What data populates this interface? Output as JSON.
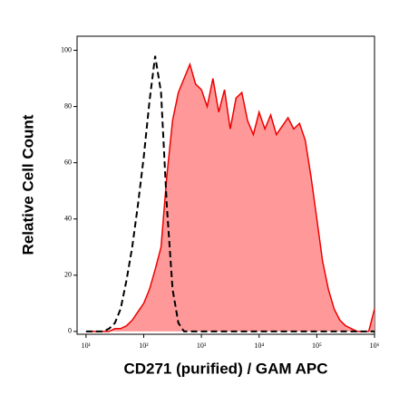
{
  "chart_data": {
    "type": "histogram-overlay",
    "xlabel": "CD271 (purified) / GAM APC",
    "ylabel": "Relative Cell Count",
    "xscale": "log",
    "xlim": [
      7,
      1000000
    ],
    "ylim": [
      -1,
      105
    ],
    "xticks": [
      {
        "value": 10,
        "label": "10¹"
      },
      {
        "value": 100,
        "label": "10²"
      },
      {
        "value": 1000,
        "label": "10³"
      },
      {
        "value": 10000,
        "label": "10⁴"
      },
      {
        "value": 100000,
        "label": "10⁵"
      },
      {
        "value": 1000000,
        "label": "10⁶"
      }
    ],
    "yticks": [
      0,
      20,
      40,
      60,
      80,
      100
    ],
    "x": [
      10,
      12.6,
      15.8,
      20,
      25.1,
      31.6,
      39.8,
      50.1,
      63.1,
      79.4,
      100,
      126,
      158,
      200,
      251,
      316,
      398,
      501,
      631,
      794,
      1000,
      1259,
      1585,
      1995,
      2512,
      3162,
      3981,
      5012,
      6310,
      7943,
      10000,
      12589,
      15849,
      19953,
      25119,
      31623,
      39811,
      50119,
      63096,
      79433,
      100000,
      125893,
      158489,
      199526,
      251189,
      316228,
      398107,
      501187,
      630957,
      794328,
      1000000
    ],
    "series": [
      {
        "color": "#ee0000",
        "fill": "#ff9999",
        "style": "filled",
        "values": [
          0,
          0,
          0,
          0,
          0,
          1,
          1,
          2,
          4,
          7,
          10,
          15,
          22,
          30,
          55,
          75,
          85,
          90,
          95,
          88,
          86,
          80,
          90,
          78,
          86,
          72,
          83,
          85,
          75,
          70,
          78,
          72,
          77,
          70,
          73,
          76,
          72,
          74,
          68,
          55,
          40,
          25,
          15,
          8,
          4,
          2,
          1,
          0,
          0,
          0,
          8
        ]
      },
      {
        "color": "#000000",
        "style": "dashed",
        "values": [
          0,
          0,
          0,
          0,
          1,
          3,
          8,
          18,
          30,
          45,
          62,
          82,
          98,
          85,
          45,
          15,
          3,
          0,
          0,
          0,
          0,
          0,
          0,
          0,
          0,
          0,
          0,
          0,
          0,
          0,
          0,
          0,
          0,
          0,
          0,
          0,
          0,
          0,
          0,
          0,
          0,
          0,
          0,
          0,
          0,
          0,
          0,
          0,
          0,
          0,
          0
        ]
      }
    ]
  }
}
